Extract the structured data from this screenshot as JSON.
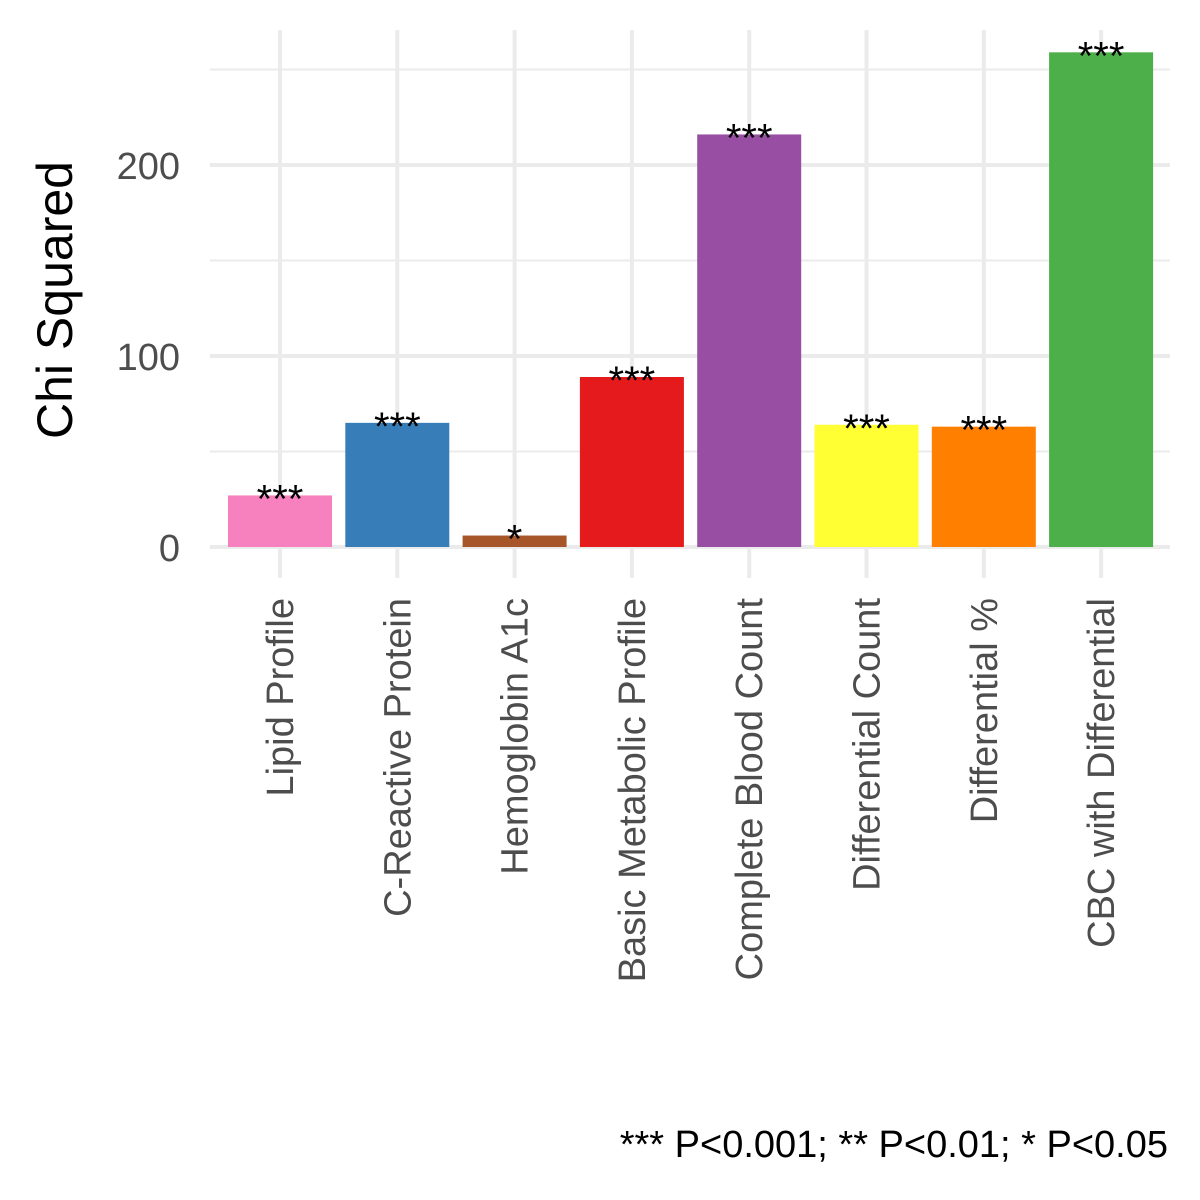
{
  "chart_data": {
    "type": "bar",
    "categories": [
      "Lipid Profile",
      "C-Reactive Protein",
      "Hemoglobin A1c",
      "Basic Metabolic Profile",
      "Complete Blood Count",
      "Differential Count",
      "Differential %",
      "CBC with Differential"
    ],
    "values": [
      27,
      65,
      6,
      89,
      216,
      64,
      63,
      259
    ],
    "significance": [
      "***",
      "***",
      "*",
      "***",
      "***",
      "***",
      "***",
      "***"
    ],
    "colors": [
      "#f781bf",
      "#377eb8",
      "#a65628",
      "#e41a1c",
      "#984ea3",
      "#ffff33",
      "#ff7f00",
      "#4daf4a"
    ],
    "title": "",
    "xlabel": "",
    "ylabel": "Chi Squared",
    "yticks": [
      0,
      100,
      200
    ],
    "ylim": [
      -5,
      270
    ],
    "grid": true,
    "legend": "none",
    "caption": "*** P<0.001; ** P<0.01; * P<0.05"
  }
}
